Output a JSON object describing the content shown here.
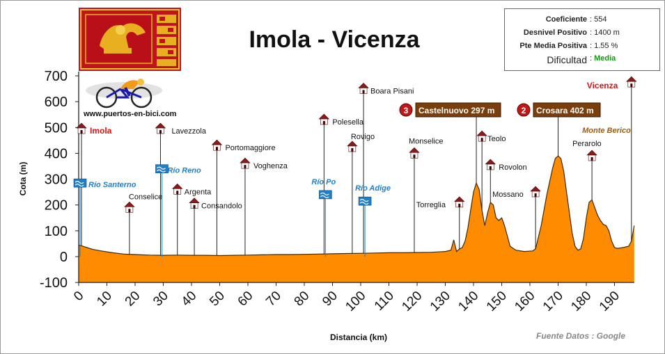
{
  "title": "Imola - Vicenza",
  "stats": [
    {
      "label": "Coeficiente",
      "value": "554"
    },
    {
      "label": "Desnivel Positivo",
      "value": "1400 m"
    },
    {
      "label": "Pte Media Positiva",
      "value": "1.55 %"
    },
    {
      "label": "Dificultad",
      "value": "Media"
    }
  ],
  "website": "www.puertos-en-bici.com",
  "source_note": "Fuente Datos : Google",
  "colors": {
    "fill": "#ff8c00",
    "outline": "#3a2a10",
    "town_red": "#dd1111",
    "peak_box": "#7a3e0c",
    "river": "#1f7fc8",
    "difficulty": "#119911"
  },
  "chart_data": {
    "type": "area",
    "xlabel": "Distancia (km)",
    "ylabel": "Cota (m)",
    "xlim": [
      0,
      197
    ],
    "ylim": [
      -100,
      700
    ],
    "xticks": [
      "0",
      "10",
      "20",
      "30",
      "40",
      "50",
      "60",
      "70",
      "80",
      "90",
      "100",
      "110",
      "120",
      "130",
      "140",
      "150",
      "160",
      "170",
      "180",
      "190"
    ],
    "yticks": [
      "700",
      "600",
      "500",
      "400",
      "300",
      "200",
      "100",
      "0",
      "-100"
    ],
    "grid": false,
    "profile": [
      [
        0,
        45
      ],
      [
        1,
        42
      ],
      [
        3,
        35
      ],
      [
        5,
        28
      ],
      [
        8,
        22
      ],
      [
        12,
        15
      ],
      [
        16,
        10
      ],
      [
        20,
        8
      ],
      [
        25,
        6
      ],
      [
        30,
        5
      ],
      [
        35,
        6
      ],
      [
        40,
        5
      ],
      [
        45,
        5
      ],
      [
        50,
        4
      ],
      [
        55,
        5
      ],
      [
        60,
        6
      ],
      [
        65,
        7
      ],
      [
        70,
        8
      ],
      [
        75,
        8
      ],
      [
        80,
        9
      ],
      [
        85,
        10
      ],
      [
        90,
        11
      ],
      [
        95,
        12
      ],
      [
        100,
        13
      ],
      [
        105,
        14
      ],
      [
        110,
        15
      ],
      [
        115,
        15
      ],
      [
        120,
        16
      ],
      [
        125,
        17
      ],
      [
        130,
        20
      ],
      [
        132,
        25
      ],
      [
        133,
        65
      ],
      [
        134,
        20
      ],
      [
        135,
        30
      ],
      [
        136,
        35
      ],
      [
        137,
        60
      ],
      [
        138,
        110
      ],
      [
        139,
        180
      ],
      [
        140,
        250
      ],
      [
        141,
        285
      ],
      [
        142,
        260
      ],
      [
        143,
        180
      ],
      [
        144,
        120
      ],
      [
        145,
        170
      ],
      [
        146,
        210
      ],
      [
        147,
        200
      ],
      [
        148,
        150
      ],
      [
        149,
        140
      ],
      [
        150,
        150
      ],
      [
        151,
        120
      ],
      [
        152,
        80
      ],
      [
        153,
        40
      ],
      [
        155,
        25
      ],
      [
        158,
        20
      ],
      [
        161,
        22
      ],
      [
        162,
        30
      ],
      [
        164,
        120
      ],
      [
        166,
        240
      ],
      [
        168,
        340
      ],
      [
        169,
        380
      ],
      [
        170,
        390
      ],
      [
        171,
        380
      ],
      [
        172,
        330
      ],
      [
        173,
        250
      ],
      [
        174,
        170
      ],
      [
        175,
        90
      ],
      [
        176,
        40
      ],
      [
        177,
        25
      ],
      [
        178,
        30
      ],
      [
        179,
        70
      ],
      [
        180,
        150
      ],
      [
        181,
        210
      ],
      [
        182,
        220
      ],
      [
        183,
        190
      ],
      [
        184,
        160
      ],
      [
        185,
        140
      ],
      [
        186,
        125
      ],
      [
        187,
        120
      ],
      [
        188,
        100
      ],
      [
        189,
        60
      ],
      [
        190,
        35
      ],
      [
        191,
        32
      ],
      [
        193,
        35
      ],
      [
        195,
        40
      ],
      [
        196,
        60
      ],
      [
        197,
        120
      ]
    ],
    "waypoints": [
      {
        "name": "Imola",
        "km": 1,
        "h": 490,
        "red": true
      },
      {
        "name": "Conselice",
        "km": 18,
        "h": 185
      },
      {
        "name": "Lavezzola",
        "km": 29,
        "h": 490
      },
      {
        "name": "Argenta",
        "km": 35,
        "h": 255
      },
      {
        "name": "Consandolo",
        "km": 41,
        "h": 200
      },
      {
        "name": "Portomaggiore",
        "km": 49,
        "h": 425
      },
      {
        "name": "Voghenza",
        "km": 59,
        "h": 355
      },
      {
        "name": "Polesella",
        "km": 87,
        "h": 525
      },
      {
        "name": "Rovigo",
        "km": 97,
        "h": 420
      },
      {
        "name": "Boara Pisani",
        "km": 101,
        "h": 645
      },
      {
        "name": "Monselice",
        "km": 119,
        "h": 395
      },
      {
        "name": "Torreglia",
        "km": 135,
        "h": 205
      },
      {
        "name": "Teolo",
        "km": 143,
        "h": 460
      },
      {
        "name": "Rovolon",
        "km": 146,
        "h": 350
      },
      {
        "name": "Mossano",
        "km": 162,
        "h": 245
      },
      {
        "name": "Perarolo",
        "km": 182,
        "h": 385
      },
      {
        "name": "Vicenza",
        "km": 196,
        "h": 670,
        "red": true
      }
    ],
    "rivers": [
      {
        "name": "Río Santerno",
        "km": 0.5,
        "h": 285
      },
      {
        "name": "Río Reno",
        "km": 29.5,
        "h": 340
      },
      {
        "name": "Río Po",
        "km": 87.5,
        "h": 240
      },
      {
        "name": "Río Adige",
        "km": 101.5,
        "h": 215
      }
    ],
    "climbs": [
      {
        "rank": "3",
        "name": "Castelnuovo 297 m",
        "km": 141,
        "h": 285
      },
      {
        "rank": "2",
        "name": "Crosara 402 m",
        "km": 170,
        "h": 390
      }
    ],
    "annotations": [
      {
        "text": "Monte Berico",
        "km": 196
      }
    ]
  }
}
